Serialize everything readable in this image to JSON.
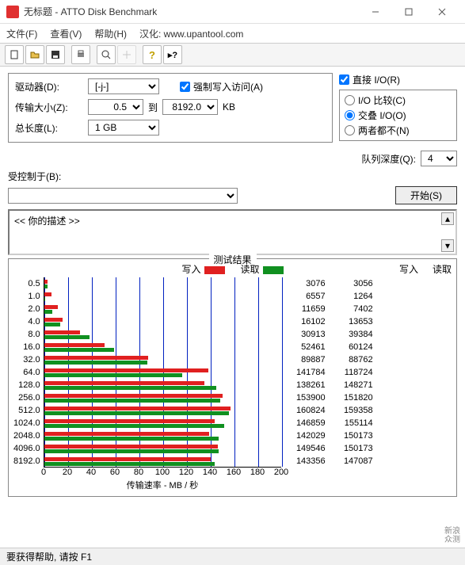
{
  "window": {
    "title": "无标题 - ATTO Disk Benchmark",
    "min": "—",
    "max": "☐",
    "close": "✕"
  },
  "menu": {
    "file": "文件(F)",
    "view": "查看(V)",
    "help": "帮助(H)",
    "han": "汉化: www.upantool.com"
  },
  "form": {
    "drive_label": "驱动器(D):",
    "drive_value": "[-j-]",
    "force_write": "强制写入访问(A)",
    "direct_io": "直接 I/O(R)",
    "transfer_label": "传输大小(Z):",
    "transfer_from": "0.5",
    "to_label": "到",
    "transfer_to": "8192.0",
    "kb": "KB",
    "io_compare": "I/O 比较(C)",
    "io_overlap": "交叠 I/O(O)",
    "io_neither": "两者都不(N)",
    "total_label": "总长度(L):",
    "total_value": "1 GB",
    "queue_label": "队列深度(Q):",
    "queue_value": "4",
    "controlled_label": "受控制于(B):",
    "controlled_value": "",
    "start_label": "开始(S)",
    "desc": "<<   你的描述    >>"
  },
  "results": {
    "legend_title": "测试结果",
    "write_label": "写入",
    "read_label": "读取",
    "write_color": "#e02020",
    "read_color": "#109020",
    "grid_color": "#0020c0",
    "x_axis_label": "传输速率 - MB / 秒",
    "x_max": 200,
    "x_ticks": [
      0,
      20,
      40,
      60,
      80,
      100,
      120,
      140,
      160,
      180,
      200
    ],
    "rows": [
      {
        "size": "0.5",
        "write": 3076,
        "read": 3056,
        "wmb": 3.0,
        "rmb": 3.0
      },
      {
        "size": "1.0",
        "write": 6557,
        "read": 1264,
        "wmb": 6.4,
        "rmb": 1.2
      },
      {
        "size": "2.0",
        "write": 11659,
        "read": 7402,
        "wmb": 11.4,
        "rmb": 7.2
      },
      {
        "size": "4.0",
        "write": 16102,
        "read": 13653,
        "wmb": 15.7,
        "rmb": 13.3
      },
      {
        "size": "8.0",
        "write": 30913,
        "read": 39384,
        "wmb": 30.2,
        "rmb": 38.5
      },
      {
        "size": "16.0",
        "write": 52461,
        "read": 60124,
        "wmb": 51.2,
        "rmb": 58.7
      },
      {
        "size": "32.0",
        "write": 89887,
        "read": 88762,
        "wmb": 87.8,
        "rmb": 86.7
      },
      {
        "size": "64.0",
        "write": 141784,
        "read": 118724,
        "wmb": 138.5,
        "rmb": 115.9
      },
      {
        "size": "128.0",
        "write": 138261,
        "read": 148271,
        "wmb": 135.0,
        "rmb": 144.8
      },
      {
        "size": "256.0",
        "write": 153900,
        "read": 151820,
        "wmb": 150.3,
        "rmb": 148.3
      },
      {
        "size": "512.0",
        "write": 160824,
        "read": 159358,
        "wmb": 157.1,
        "rmb": 155.6
      },
      {
        "size": "1024.0",
        "write": 146859,
        "read": 155114,
        "wmb": 143.4,
        "rmb": 151.5
      },
      {
        "size": "2048.0",
        "write": 142029,
        "read": 150173,
        "wmb": 138.7,
        "rmb": 146.7
      },
      {
        "size": "4096.0",
        "write": 149546,
        "read": 150173,
        "wmb": 146.0,
        "rmb": 146.7
      },
      {
        "size": "8192.0",
        "write": 143356,
        "read": 147087,
        "wmb": 140.0,
        "rmb": 143.6
      }
    ]
  },
  "status": "要获得帮助, 请按 F1",
  "watermark": {
    "l1": "新浪",
    "l2": "众测"
  }
}
